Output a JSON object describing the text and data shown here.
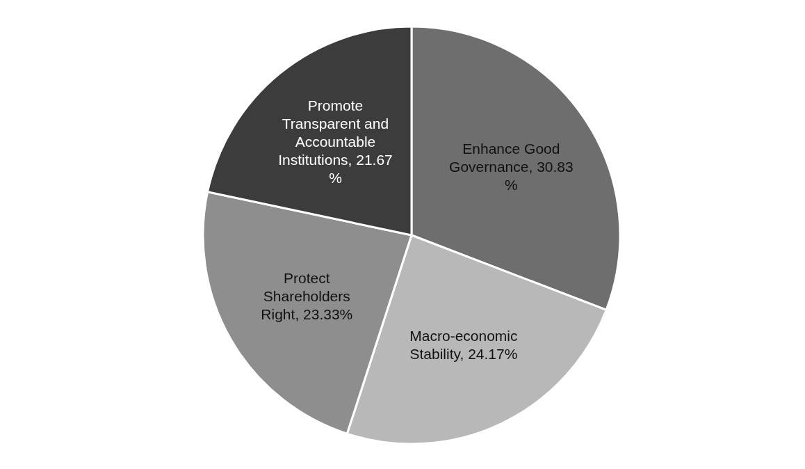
{
  "chart_data": {
    "type": "pie",
    "categories": [
      "Enhance Good Governance",
      "Macro-economic Stability",
      "Protect Shareholders Right",
      "Promote Transparent and Accountable Institutions"
    ],
    "values": [
      30.83,
      24.17,
      23.33,
      21.67
    ],
    "value_labels": [
      "30.83 %",
      "24.17%",
      "23.33%",
      "21.67 %"
    ],
    "colors": [
      "#6e6e6e",
      "#b8b8b8",
      "#8e8e8e",
      "#3c3c3c"
    ],
    "legend": false
  }
}
